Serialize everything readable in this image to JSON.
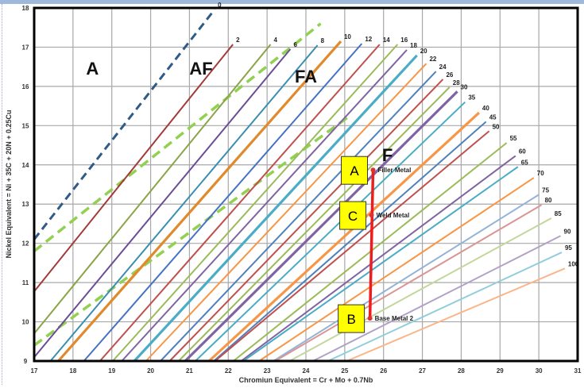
{
  "chart_data": {
    "type": "line",
    "title": "",
    "xlabel": "Chromiun Equivalent = Cr + Mo + 0.7Nb",
    "ylabel": "Nickel Equivalent = Ni + 35C + 20N + 0.25Cu",
    "xlim": [
      17,
      31
    ],
    "ylim": [
      9,
      18
    ],
    "xticks": [
      "17",
      "18",
      "19",
      "20",
      "21",
      "22",
      "23",
      "24",
      "25",
      "26",
      "27",
      "28",
      "29",
      "30",
      "31"
    ],
    "yticks": [
      "9",
      "10",
      "11",
      "12",
      "13",
      "14",
      "15",
      "16",
      "17",
      "18"
    ],
    "grid": true,
    "iso_ferrite_lines": [
      {
        "label": "0",
        "end": [
          21.65,
          17.96
        ],
        "slope": 1.26,
        "color": "#2f5b86",
        "style": "dashed"
      },
      {
        "label": "2",
        "end": [
          22.12,
          17.07
        ],
        "slope": 1.23,
        "color": "#a33a3a"
      },
      {
        "label": "4",
        "end": [
          23.09,
          17.07
        ],
        "slope": 1.21,
        "color": "#8aa447"
      },
      {
        "label": "6",
        "end": [
          23.6,
          16.95
        ],
        "slope": 1.19,
        "color": "#6b4d96"
      },
      {
        "label": "8",
        "end": [
          24.3,
          17.05
        ],
        "slope": 1.17,
        "color": "#3a8fb0"
      },
      {
        "label": "10",
        "end": [
          24.9,
          17.15
        ],
        "slope": 1.12,
        "color": "#e08a2c",
        "thick": true
      },
      {
        "label": "12",
        "end": [
          25.44,
          17.09
        ],
        "slope": 1.13,
        "color": "#4472c4"
      },
      {
        "label": "14",
        "end": [
          25.9,
          17.07
        ],
        "slope": 1.12,
        "color": "#c0504d"
      },
      {
        "label": "16",
        "end": [
          26.36,
          17.07
        ],
        "slope": 1.1,
        "color": "#9bbb59"
      },
      {
        "label": "18",
        "end": [
          26.6,
          16.93
        ],
        "slope": 1.08,
        "color": "#8064a2"
      },
      {
        "label": "20",
        "end": [
          26.86,
          16.79
        ],
        "slope": 1.07,
        "color": "#4bacc6",
        "thick": true
      },
      {
        "label": "22",
        "end": [
          27.1,
          16.58
        ],
        "slope": 1.05,
        "color": "#f79646"
      },
      {
        "label": "24",
        "end": [
          27.35,
          16.38
        ],
        "slope": 1.04,
        "color": "#4f81bd"
      },
      {
        "label": "26",
        "end": [
          27.53,
          16.18
        ],
        "slope": 1.02,
        "color": "#c0504d"
      },
      {
        "label": "28",
        "end": [
          27.7,
          15.98
        ],
        "slope": 1.0,
        "color": "#9bbb59"
      },
      {
        "label": "30",
        "end": [
          27.9,
          15.87
        ],
        "slope": 0.98,
        "color": "#8064a2",
        "thick": true
      },
      {
        "label": "35",
        "end": [
          28.1,
          15.6
        ],
        "slope": 0.95,
        "color": "#4bacc6"
      },
      {
        "label": "40",
        "end": [
          28.46,
          15.33
        ],
        "slope": 0.91,
        "color": "#f79646",
        "thick": true
      },
      {
        "label": "45",
        "end": [
          28.64,
          15.1
        ],
        "slope": 0.87,
        "color": "#4f81bd"
      },
      {
        "label": "50",
        "end": [
          28.72,
          14.86
        ],
        "slope": 0.83,
        "color": "#c0504d"
      },
      {
        "label": "55",
        "end": [
          29.17,
          14.56
        ],
        "slope": 0.79,
        "color": "#9bbb59"
      },
      {
        "label": "60",
        "end": [
          29.4,
          14.23
        ],
        "slope": 0.74,
        "color": "#8064a2"
      },
      {
        "label": "65",
        "end": [
          29.46,
          13.95
        ],
        "slope": 0.7,
        "color": "#4bacc6"
      },
      {
        "label": "70",
        "end": [
          29.87,
          13.67
        ],
        "slope": 0.66,
        "color": "#f79646"
      },
      {
        "label": "75",
        "end": [
          30.0,
          13.24
        ],
        "slope": 0.62,
        "color": "#95b3d7"
      },
      {
        "label": "80",
        "end": [
          30.07,
          12.98
        ],
        "slope": 0.58,
        "color": "#d99694"
      },
      {
        "label": "85",
        "end": [
          30.32,
          12.64
        ],
        "slope": 0.54,
        "color": "#c3d69b"
      },
      {
        "label": "90",
        "end": [
          30.56,
          12.19
        ],
        "slope": 0.5,
        "color": "#b2a2c7"
      },
      {
        "label": "95",
        "end": [
          30.59,
          11.77
        ],
        "slope": 0.46,
        "color": "#92cddc"
      },
      {
        "label": "100",
        "end": [
          30.67,
          11.36
        ],
        "slope": 0.42,
        "color": "#fab68a"
      }
    ],
    "boundary_lines": [
      {
        "start": [
          17,
          11.8
        ],
        "end": [
          24.38,
          17.6
        ],
        "color": "#92d050",
        "style": "dashed"
      },
      {
        "start": [
          17,
          9.4
        ],
        "end": [
          25.16,
          15.27
        ],
        "color": "#92d050",
        "style": "dashed"
      }
    ],
    "regions": [
      {
        "label": "A",
        "at": [
          18.5,
          16.3
        ]
      },
      {
        "label": "AF",
        "at": [
          21.3,
          16.3
        ]
      },
      {
        "label": "FA",
        "at": [
          24.0,
          16.1
        ]
      },
      {
        "label": "F",
        "at": [
          26.1,
          14.1
        ]
      }
    ],
    "points": [
      {
        "name": "Filler Metal",
        "x": 25.73,
        "y": 13.87,
        "marker": "A"
      },
      {
        "name": "Weld Metal",
        "x": 25.69,
        "y": 12.72,
        "marker": "C"
      },
      {
        "name": "Base Metal 2",
        "x": 25.65,
        "y": 10.09,
        "marker": "B"
      }
    ],
    "tie_line_color": "#ee1c1c",
    "marker_box_color": "#ffff00"
  }
}
